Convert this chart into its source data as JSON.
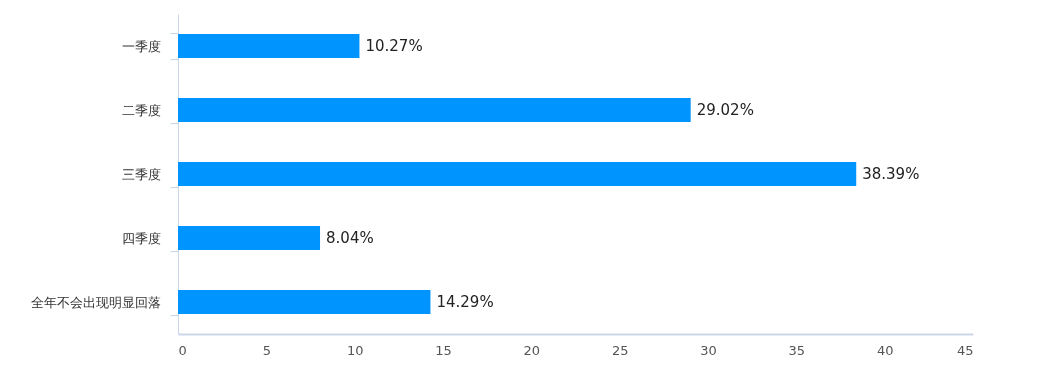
{
  "chart_data": {
    "type": "bar",
    "orientation": "horizontal",
    "categories": [
      "一季度",
      "二季度",
      "三季度",
      "四季度",
      "全年不会出现明显回落"
    ],
    "values": [
      10.27,
      29.02,
      38.39,
      8.04,
      14.29
    ],
    "value_labels": [
      "10.27%",
      "29.02%",
      "38.39%",
      "8.04%",
      "14.29%"
    ],
    "color": "#0094ff",
    "xlim": [
      0,
      45
    ],
    "xticks": [
      0,
      5,
      10,
      15,
      20,
      25,
      30,
      35,
      40,
      45
    ],
    "grid": false
  }
}
